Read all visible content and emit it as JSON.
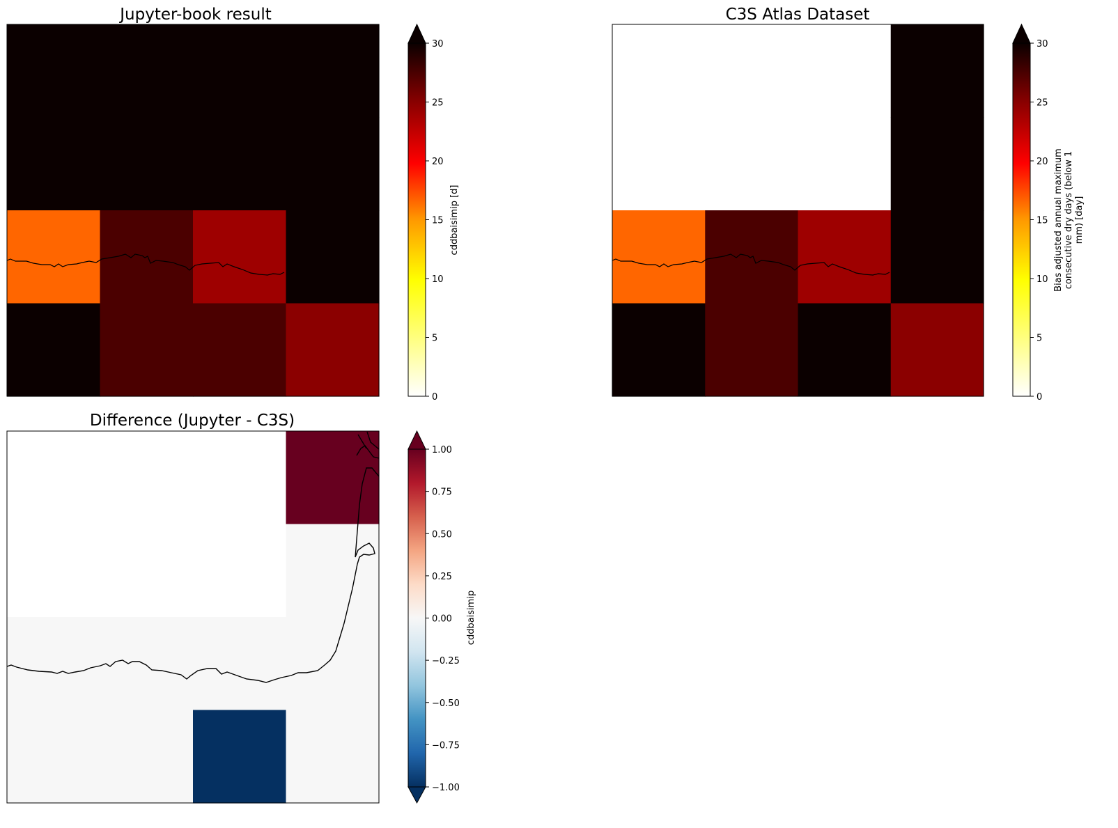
{
  "chart_data": [
    {
      "type": "heatmap",
      "title": "Jupyter-book result",
      "colormap": "hot_r",
      "grid": false,
      "rows": 4,
      "cols": 4,
      "values": [
        [
          30,
          30,
          30,
          30
        ],
        [
          30,
          30,
          30,
          30
        ],
        [
          14,
          27,
          23,
          30
        ],
        [
          30,
          27,
          27,
          24
        ]
      ],
      "colorbar": {
        "label": "cddbaisimip [d]",
        "range": [
          0,
          30
        ],
        "ticks": [
          "0",
          "5",
          "10",
          "15",
          "20",
          "25",
          "30"
        ],
        "extend": "max"
      },
      "colorbar_ticks": [
        "0",
        "5",
        "10",
        "15",
        "20",
        "25",
        "30"
      ]
    },
    {
      "type": "heatmap",
      "title": "C3S Atlas Dataset",
      "colormap": "hot_r",
      "grid": false,
      "rows": 4,
      "cols": 4,
      "values": [
        [
          null,
          null,
          null,
          30
        ],
        [
          null,
          null,
          null,
          30
        ],
        [
          14,
          27,
          23,
          30
        ],
        [
          30,
          27,
          30,
          24
        ]
      ],
      "colorbar": {
        "label_lines": [
          "Bias adjusted annual maximum",
          "consecutive dry days (below 1",
          "mm) [day]"
        ],
        "range": [
          0,
          30
        ],
        "extend": "max"
      },
      "colorbar_ticks": [
        "0",
        "5",
        "10",
        "15",
        "20",
        "25",
        "30"
      ]
    },
    {
      "type": "heatmap",
      "title": "Difference (Jupyter - C3S)",
      "colormap": "RdBu_r",
      "grid": false,
      "rows": 4,
      "cols": 4,
      "values": [
        [
          null,
          null,
          null,
          1
        ],
        [
          null,
          null,
          null,
          0
        ],
        [
          0,
          0,
          0,
          0
        ],
        [
          0,
          0,
          -1,
          0
        ]
      ],
      "colorbar": {
        "label": "cddbaisimip",
        "range": [
          -1,
          1
        ],
        "extend": "both"
      },
      "colorbar_ticks": [
        "−1.00",
        "−0.75",
        "−0.50",
        "−0.25",
        "0.00",
        "0.25",
        "0.50",
        "0.75",
        "1.00"
      ]
    }
  ],
  "colors": {
    "hot_r_stops": [
      "#ffffff",
      "#ffff00",
      "#ff9900",
      "#ff0000",
      "#8b0000",
      "#0b0000"
    ],
    "rdbu_stops": [
      "#053061",
      "#2166ac",
      "#4393c3",
      "#92c5de",
      "#d1e5f0",
      "#f7f7f7",
      "#fddbc7",
      "#f4a582",
      "#d6604d",
      "#b2182b",
      "#67001f"
    ],
    "coastline": "#000000"
  }
}
